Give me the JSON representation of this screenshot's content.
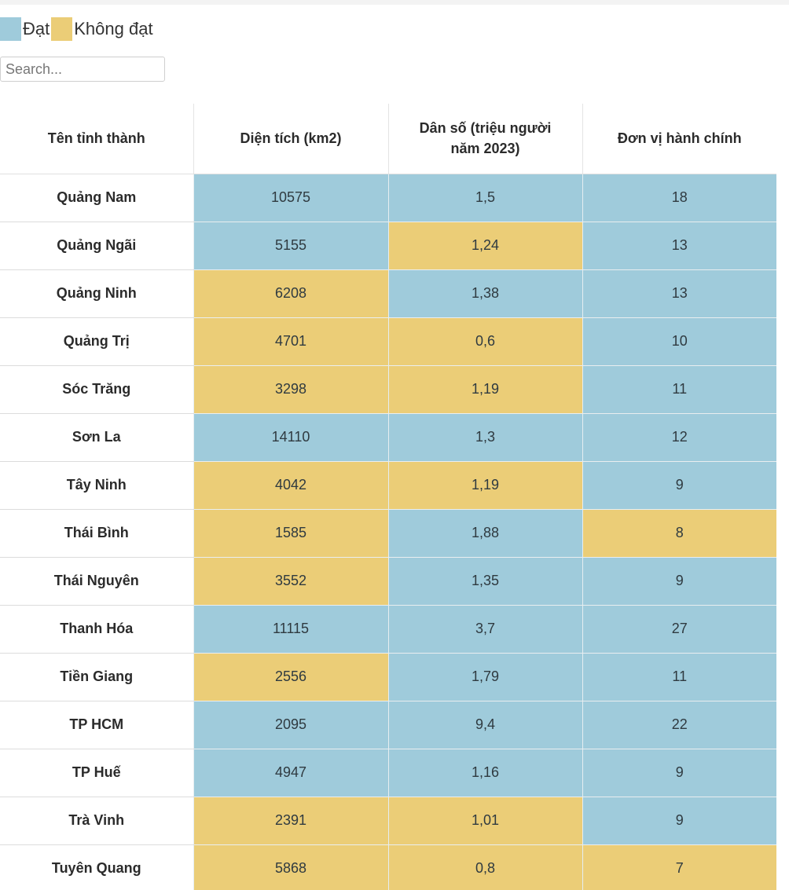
{
  "colors": {
    "pass": "#9fcbdb",
    "fail": "#ebcd77"
  },
  "legend": [
    {
      "label": "Đạt",
      "status": "pass"
    },
    {
      "label": "Không đạt",
      "status": "fail"
    }
  ],
  "search": {
    "placeholder": "Search...",
    "value": ""
  },
  "table": {
    "headers": [
      "Tên tỉnh thành",
      "Diện tích (km2)",
      "Dân số (triệu người năm 2023)",
      "Đơn vị hành chính"
    ],
    "rows": [
      {
        "name": "Quảng Nam",
        "area": "10575",
        "area_status": "pass",
        "pop": "1,5",
        "pop_status": "pass",
        "units": "18",
        "units_status": "pass"
      },
      {
        "name": "Quảng Ngãi",
        "area": "5155",
        "area_status": "pass",
        "pop": "1,24",
        "pop_status": "fail",
        "units": "13",
        "units_status": "pass"
      },
      {
        "name": "Quảng Ninh",
        "area": "6208",
        "area_status": "fail",
        "pop": "1,38",
        "pop_status": "pass",
        "units": "13",
        "units_status": "pass"
      },
      {
        "name": "Quảng Trị",
        "area": "4701",
        "area_status": "fail",
        "pop": "0,6",
        "pop_status": "fail",
        "units": "10",
        "units_status": "pass"
      },
      {
        "name": "Sóc Trăng",
        "area": "3298",
        "area_status": "fail",
        "pop": "1,19",
        "pop_status": "fail",
        "units": "11",
        "units_status": "pass"
      },
      {
        "name": "Sơn La",
        "area": "14110",
        "area_status": "pass",
        "pop": "1,3",
        "pop_status": "pass",
        "units": "12",
        "units_status": "pass"
      },
      {
        "name": "Tây Ninh",
        "area": "4042",
        "area_status": "fail",
        "pop": "1,19",
        "pop_status": "fail",
        "units": "9",
        "units_status": "pass"
      },
      {
        "name": "Thái Bình",
        "area": "1585",
        "area_status": "fail",
        "pop": "1,88",
        "pop_status": "pass",
        "units": "8",
        "units_status": "fail"
      },
      {
        "name": "Thái Nguyên",
        "area": "3552",
        "area_status": "fail",
        "pop": "1,35",
        "pop_status": "pass",
        "units": "9",
        "units_status": "pass"
      },
      {
        "name": "Thanh Hóa",
        "area": "11115",
        "area_status": "pass",
        "pop": "3,7",
        "pop_status": "pass",
        "units": "27",
        "units_status": "pass"
      },
      {
        "name": "Tiền Giang",
        "area": "2556",
        "area_status": "fail",
        "pop": "1,79",
        "pop_status": "pass",
        "units": "11",
        "units_status": "pass"
      },
      {
        "name": "TP HCM",
        "area": "2095",
        "area_status": "pass",
        "pop": "9,4",
        "pop_status": "pass",
        "units": "22",
        "units_status": "pass"
      },
      {
        "name": "TP Huế",
        "area": "4947",
        "area_status": "pass",
        "pop": "1,16",
        "pop_status": "pass",
        "units": "9",
        "units_status": "pass"
      },
      {
        "name": "Trà Vinh",
        "area": "2391",
        "area_status": "fail",
        "pop": "1,01",
        "pop_status": "fail",
        "units": "9",
        "units_status": "pass"
      },
      {
        "name": "Tuyên Quang",
        "area": "5868",
        "area_status": "fail",
        "pop": "0,8",
        "pop_status": "fail",
        "units": "7",
        "units_status": "fail"
      }
    ]
  }
}
